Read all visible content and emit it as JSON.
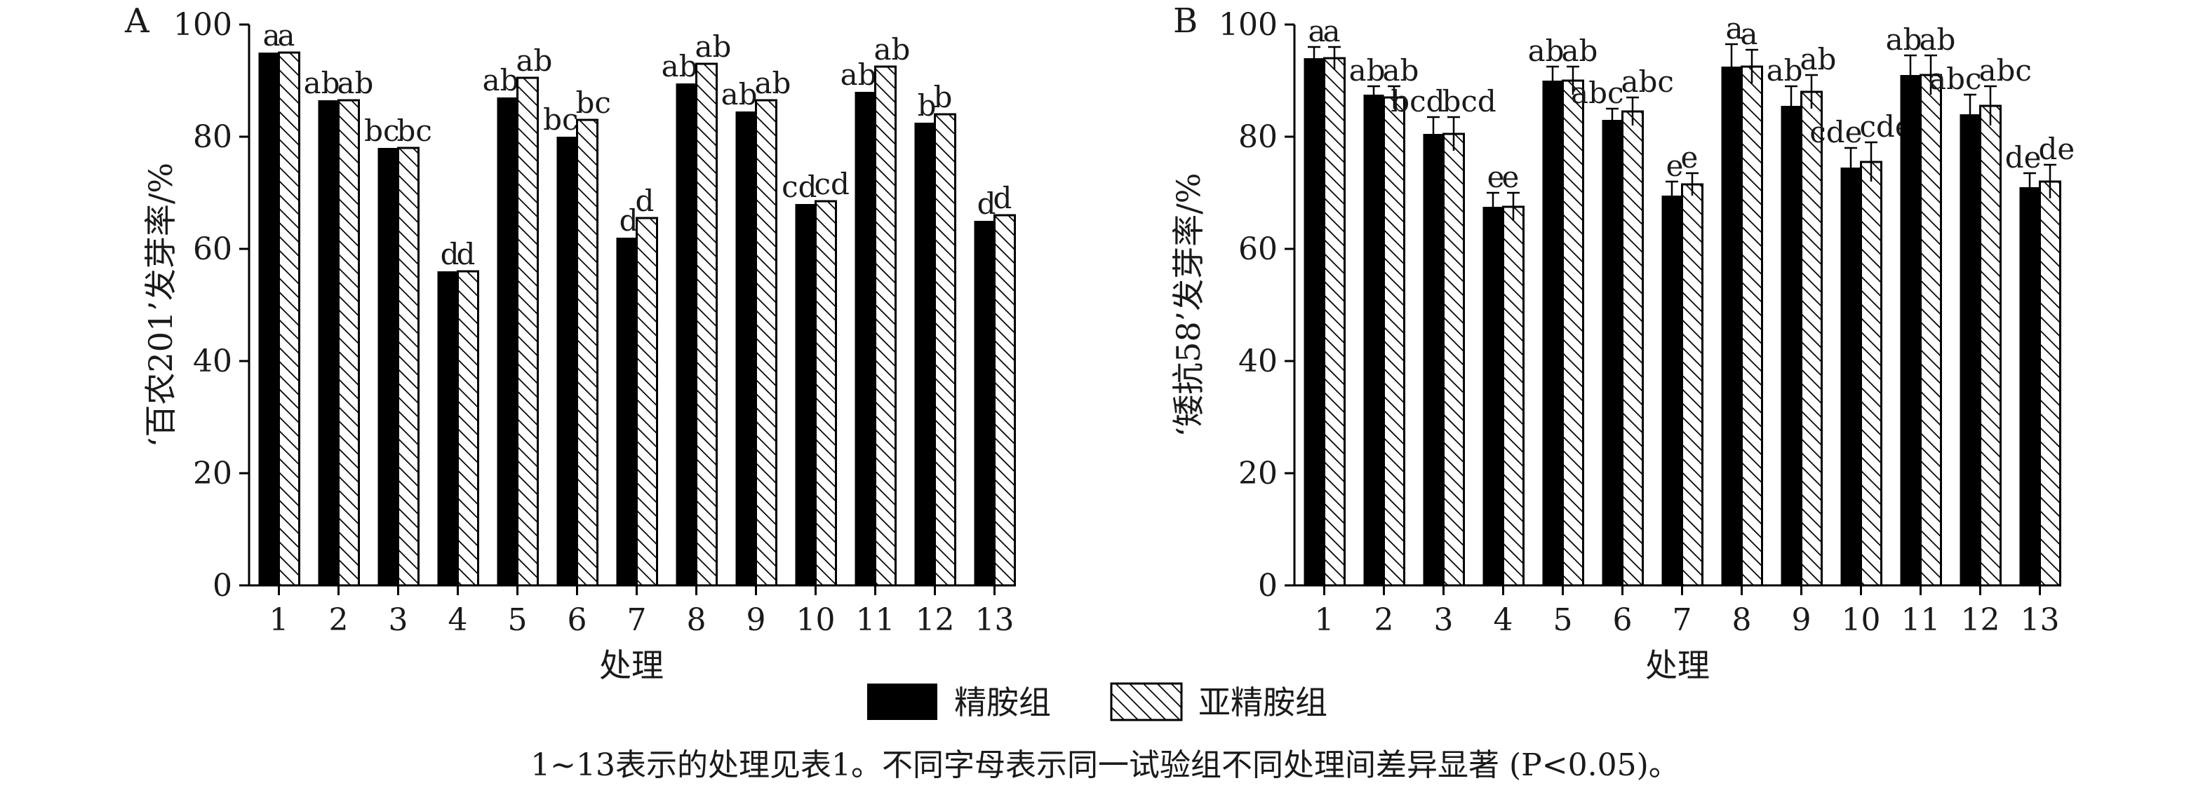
{
  "chart_data": [
    {
      "type": "bar",
      "panel": "A",
      "xlabel": "处理",
      "ylabel": "‘百农201’发芽率/%",
      "ylim": [
        0,
        100
      ],
      "yticks": [
        "0",
        "20",
        "40",
        "60",
        "80",
        "100"
      ],
      "categories": [
        "1",
        "2",
        "3",
        "4",
        "5",
        "6",
        "7",
        "8",
        "9",
        "10",
        "11",
        "12",
        "13"
      ],
      "error_bars": false,
      "series": [
        {
          "name": "精胺组",
          "values": [
            95,
            86.5,
            78,
            56,
            87,
            80,
            62,
            89.5,
            84.5,
            68,
            88,
            82.5,
            65
          ],
          "labels": [
            "a",
            "ab",
            "bc",
            "d",
            "ab",
            "bc",
            "d",
            "ab",
            "ab",
            "cd",
            "ab",
            "b",
            "d"
          ]
        },
        {
          "name": "亚精胺组",
          "values": [
            95,
            86.5,
            78,
            56,
            90.5,
            83,
            65.5,
            93,
            86.5,
            68.5,
            92.5,
            84,
            66
          ],
          "labels": [
            "a",
            "ab",
            "bc",
            "d",
            "ab",
            "bc",
            "d",
            "ab",
            "ab",
            "cd",
            "ab",
            "b",
            "d"
          ]
        }
      ]
    },
    {
      "type": "bar",
      "panel": "B",
      "xlabel": "处理",
      "ylabel": "‘矮抗58’发芽率/%",
      "ylim": [
        0,
        100
      ],
      "yticks": [
        "0",
        "20",
        "40",
        "60",
        "80",
        "100"
      ],
      "categories": [
        "1",
        "2",
        "3",
        "4",
        "5",
        "6",
        "7",
        "8",
        "9",
        "10",
        "11",
        "12",
        "13"
      ],
      "error_bars": true,
      "series": [
        {
          "name": "精胺组",
          "values": [
            94,
            87.5,
            80.5,
            67.5,
            90,
            83,
            69.5,
            92.5,
            85.5,
            74.5,
            91,
            84,
            71
          ],
          "errors": [
            2,
            1.5,
            3,
            2.5,
            2.5,
            2,
            2.5,
            4,
            3.5,
            3.5,
            3.5,
            3.5,
            2.5
          ],
          "labels": [
            "a",
            "ab",
            "bcd",
            "e",
            "ab",
            "abc",
            "e",
            "a",
            "ab",
            "cde",
            "ab",
            "abc",
            "de"
          ]
        },
        {
          "name": "亚精胺组",
          "values": [
            94,
            87,
            80.5,
            67.5,
            90,
            84.5,
            71.5,
            92.5,
            88,
            75.5,
            91,
            85.5,
            72
          ],
          "errors": [
            2,
            2,
            3,
            2.5,
            2.5,
            2.5,
            2,
            3,
            3,
            3.5,
            3.5,
            3.5,
            3
          ],
          "labels": [
            "a",
            "ab",
            "bcd",
            "e",
            "ab",
            "abc",
            "e",
            "a",
            "ab",
            "cde",
            "ab",
            "abc",
            "de"
          ]
        }
      ]
    }
  ],
  "legend": {
    "items": [
      {
        "label": "精胺组",
        "fill": "solid"
      },
      {
        "label": "亚精胺组",
        "fill": "hatched"
      }
    ]
  },
  "note": "1~13表示的处理见表1。不同字母表示同一试验组不同处理间差异显著 (P<0.05)。",
  "colors": {
    "solid_bar": "#000000",
    "hatch": "#000000",
    "axis": "#000000"
  }
}
